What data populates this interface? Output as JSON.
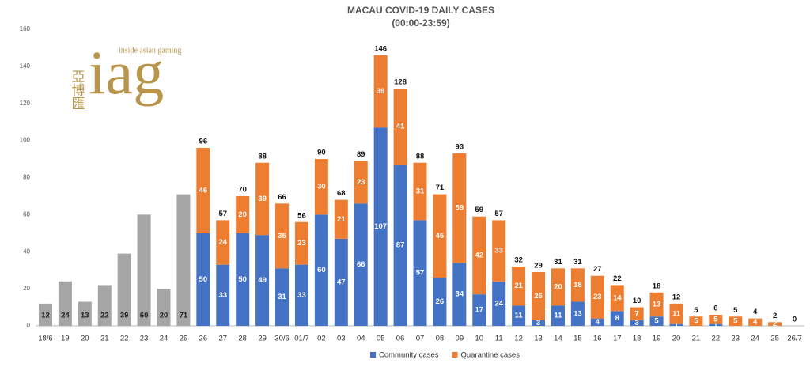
{
  "chart_data": {
    "type": "stacked_bar",
    "title": "MACAU COVID-19 DAILY CASES",
    "subtitle": "(00:00-23:59)",
    "logo": {
      "chinese": "亞博匯",
      "mark": "iag",
      "tagline": "inside asian gaming"
    },
    "categories": [
      "18/6",
      "19",
      "20",
      "21",
      "22",
      "23",
      "24",
      "25",
      "26",
      "27",
      "28",
      "29",
      "30/6",
      "01/7",
      "02",
      "03",
      "04",
      "05",
      "06",
      "07",
      "08",
      "09",
      "10",
      "11",
      "12",
      "13",
      "14",
      "15",
      "16",
      "17",
      "18",
      "19",
      "20",
      "21",
      "22",
      "23",
      "24",
      "25",
      "26/7"
    ],
    "series": [
      {
        "name": "Community cases",
        "color": "#4472c4",
        "values": [
          null,
          null,
          null,
          null,
          null,
          null,
          null,
          null,
          50,
          33,
          50,
          49,
          31,
          33,
          60,
          47,
          66,
          107,
          87,
          57,
          26,
          34,
          17,
          24,
          11,
          3,
          11,
          13,
          4,
          8,
          3,
          5,
          1,
          0,
          1,
          0,
          0,
          0,
          0
        ]
      },
      {
        "name": "Quarantine cases",
        "color": "#ed7d31",
        "values": [
          null,
          null,
          null,
          null,
          null,
          null,
          null,
          null,
          46,
          24,
          20,
          39,
          35,
          23,
          30,
          21,
          23,
          39,
          41,
          31,
          45,
          59,
          42,
          33,
          21,
          26,
          20,
          18,
          23,
          14,
          7,
          13,
          11,
          5,
          5,
          5,
          4,
          2,
          0
        ]
      },
      {
        "color": "#a5a5a5",
        "values": [
          12,
          24,
          13,
          22,
          39,
          60,
          20,
          71,
          null,
          null,
          null,
          null,
          null,
          null,
          null,
          null,
          null,
          null,
          null,
          null,
          null,
          null,
          null,
          null,
          null,
          null,
          null,
          null,
          null,
          null,
          null,
          null,
          null,
          null,
          null,
          null,
          null,
          null,
          null
        ]
      }
    ],
    "totals": [
      null,
      null,
      null,
      null,
      null,
      null,
      null,
      null,
      96,
      57,
      70,
      88,
      66,
      56,
      90,
      68,
      89,
      146,
      128,
      88,
      71,
      93,
      59,
      57,
      32,
      29,
      31,
      31,
      27,
      22,
      10,
      18,
      12,
      5,
      6,
      5,
      4,
      2,
      0
    ],
    "ylim": [
      0,
      160
    ],
    "yticks": [
      0,
      20,
      40,
      60,
      80,
      100,
      120,
      140,
      160
    ],
    "grid": false,
    "legend": "bottom"
  }
}
